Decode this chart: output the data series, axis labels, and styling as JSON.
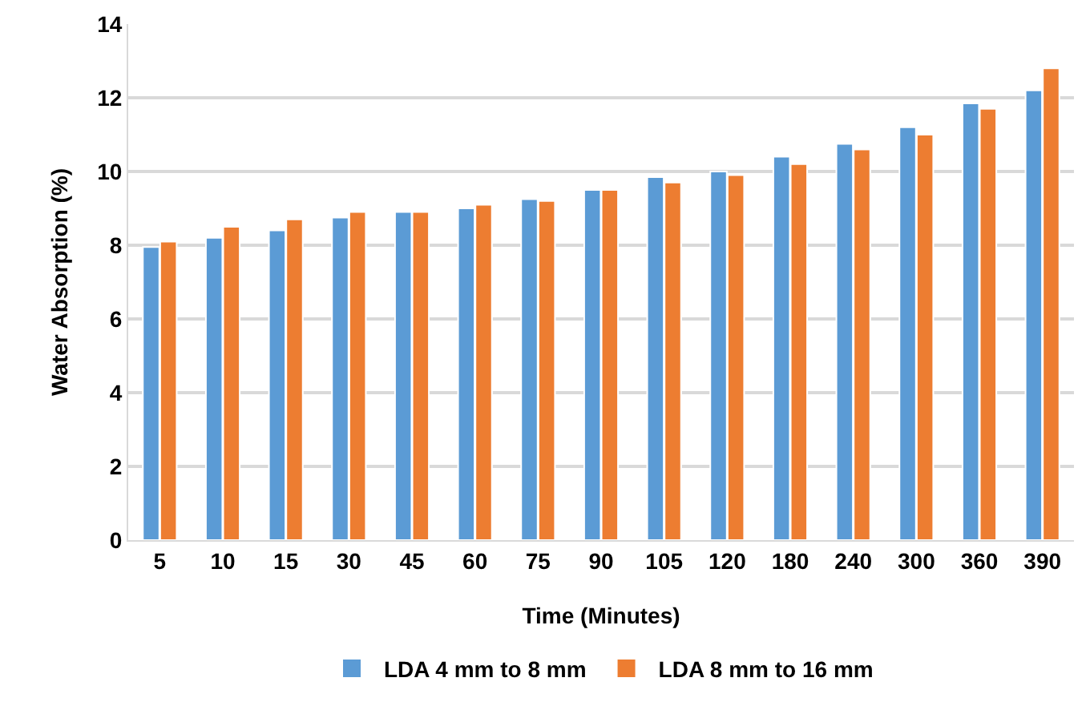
{
  "chart_data": {
    "type": "bar",
    "xlabel": "Time (Minutes)",
    "ylabel": "Water Absorption (%)",
    "categories": [
      "5",
      "10",
      "15",
      "30",
      "45",
      "60",
      "75",
      "90",
      "105",
      "120",
      "180",
      "240",
      "300",
      "360",
      "390"
    ],
    "series": [
      {
        "name": "LDA 4 mm to 8 mm",
        "color": "#5b9bd5",
        "values": [
          7.95,
          8.2,
          8.4,
          8.75,
          8.9,
          9.0,
          9.25,
          9.5,
          9.85,
          10.0,
          10.4,
          10.75,
          11.2,
          11.85,
          12.2
        ]
      },
      {
        "name": "LDA 8 mm to 16 mm",
        "color": "#ed7d31",
        "values": [
          8.1,
          8.5,
          8.7,
          8.9,
          8.9,
          9.1,
          9.2,
          9.5,
          9.7,
          9.9,
          10.2,
          10.6,
          11.0,
          11.7,
          12.8
        ]
      }
    ],
    "ylim": [
      0,
      14
    ],
    "yticks": [
      0,
      2,
      4,
      6,
      8,
      10,
      12,
      14
    ],
    "grid": "y",
    "legend": "bottom"
  }
}
